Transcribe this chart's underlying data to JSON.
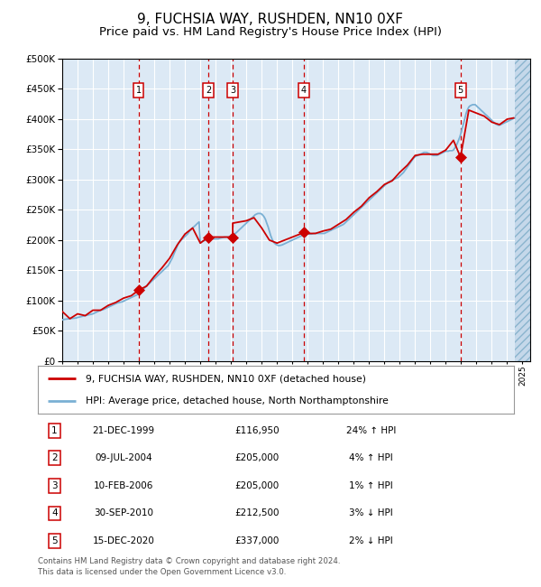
{
  "title": "9, FUCHSIA WAY, RUSHDEN, NN10 0XF",
  "subtitle": "Price paid vs. HM Land Registry's House Price Index (HPI)",
  "title_fontsize": 11,
  "subtitle_fontsize": 9.5,
  "background_color": "#dce9f5",
  "grid_color": "#ffffff",
  "sale_color": "#cc0000",
  "hpi_color": "#7ab0d4",
  "dashed_line_color": "#cc0000",
  "xlim_start": 1995.0,
  "xlim_end": 2025.5,
  "ylim_min": 0,
  "ylim_max": 500000,
  "ytick_step": 50000,
  "sales": [
    {
      "year": 1999.97,
      "price": 116950,
      "label": "1"
    },
    {
      "year": 2004.52,
      "price": 205000,
      "label": "2"
    },
    {
      "year": 2006.11,
      "price": 205000,
      "label": "3"
    },
    {
      "year": 2010.75,
      "price": 212500,
      "label": "4"
    },
    {
      "year": 2020.96,
      "price": 337000,
      "label": "5"
    }
  ],
  "legend_entries": [
    {
      "label": "9, FUCHSIA WAY, RUSHDEN, NN10 0XF (detached house)",
      "color": "#cc0000",
      "lw": 2
    },
    {
      "label": "HPI: Average price, detached house, North Northamptonshire",
      "color": "#7ab0d4",
      "lw": 2
    }
  ],
  "table_rows": [
    {
      "num": "1",
      "date": "21-DEC-1999",
      "price": "£116,950",
      "pct": "24% ↑ HPI"
    },
    {
      "num": "2",
      "date": "09-JUL-2004",
      "price": "£205,000",
      "pct": "4% ↑ HPI"
    },
    {
      "num": "3",
      "date": "10-FEB-2006",
      "price": "£205,000",
      "pct": "1% ↑ HPI"
    },
    {
      "num": "4",
      "date": "30-SEP-2010",
      "price": "£212,500",
      "pct": "3% ↓ HPI"
    },
    {
      "num": "5",
      "date": "15-DEC-2020",
      "price": "£337,000",
      "pct": "2% ↓ HPI"
    }
  ],
  "footer": "Contains HM Land Registry data © Crown copyright and database right 2024.\nThis data is licensed under the Open Government Licence v3.0.",
  "hpi_data": {
    "years": [
      1995.0,
      1995.08,
      1995.17,
      1995.25,
      1995.33,
      1995.42,
      1995.5,
      1995.58,
      1995.67,
      1995.75,
      1995.83,
      1995.92,
      1996.0,
      1996.08,
      1996.17,
      1996.25,
      1996.33,
      1996.42,
      1996.5,
      1996.58,
      1996.67,
      1996.75,
      1996.83,
      1996.92,
      1997.0,
      1997.08,
      1997.17,
      1997.25,
      1997.33,
      1997.42,
      1997.5,
      1997.58,
      1997.67,
      1997.75,
      1997.83,
      1997.92,
      1998.0,
      1998.08,
      1998.17,
      1998.25,
      1998.33,
      1998.42,
      1998.5,
      1998.58,
      1998.67,
      1998.75,
      1998.83,
      1998.92,
      1999.0,
      1999.08,
      1999.17,
      1999.25,
      1999.33,
      1999.42,
      1999.5,
      1999.58,
      1999.67,
      1999.75,
      1999.83,
      1999.92,
      2000.0,
      2000.08,
      2000.17,
      2000.25,
      2000.33,
      2000.42,
      2000.5,
      2000.58,
      2000.67,
      2000.75,
      2000.83,
      2000.92,
      2001.0,
      2001.08,
      2001.17,
      2001.25,
      2001.33,
      2001.42,
      2001.5,
      2001.58,
      2001.67,
      2001.75,
      2001.83,
      2001.92,
      2002.0,
      2002.08,
      2002.17,
      2002.25,
      2002.33,
      2002.42,
      2002.5,
      2002.58,
      2002.67,
      2002.75,
      2002.83,
      2002.92,
      2003.0,
      2003.08,
      2003.17,
      2003.25,
      2003.33,
      2003.42,
      2003.5,
      2003.58,
      2003.67,
      2003.75,
      2003.83,
      2003.92,
      2004.0,
      2004.08,
      2004.17,
      2004.25,
      2004.33,
      2004.42,
      2004.5,
      2004.58,
      2004.67,
      2004.75,
      2004.83,
      2004.92,
      2005.0,
      2005.08,
      2005.17,
      2005.25,
      2005.33,
      2005.42,
      2005.5,
      2005.58,
      2005.67,
      2005.75,
      2005.83,
      2005.92,
      2006.0,
      2006.08,
      2006.17,
      2006.25,
      2006.33,
      2006.42,
      2006.5,
      2006.58,
      2006.67,
      2006.75,
      2006.83,
      2006.92,
      2007.0,
      2007.08,
      2007.17,
      2007.25,
      2007.33,
      2007.42,
      2007.5,
      2007.58,
      2007.67,
      2007.75,
      2007.83,
      2007.92,
      2008.0,
      2008.08,
      2008.17,
      2008.25,
      2008.33,
      2008.42,
      2008.5,
      2008.58,
      2008.67,
      2008.75,
      2008.83,
      2008.92,
      2009.0,
      2009.08,
      2009.17,
      2009.25,
      2009.33,
      2009.42,
      2009.5,
      2009.58,
      2009.67,
      2009.75,
      2009.83,
      2009.92,
      2010.0,
      2010.08,
      2010.17,
      2010.25,
      2010.33,
      2010.42,
      2010.5,
      2010.58,
      2010.67,
      2010.75,
      2010.83,
      2010.92,
      2011.0,
      2011.08,
      2011.17,
      2011.25,
      2011.33,
      2011.42,
      2011.5,
      2011.58,
      2011.67,
      2011.75,
      2011.83,
      2011.92,
      2012.0,
      2012.08,
      2012.17,
      2012.25,
      2012.33,
      2012.42,
      2012.5,
      2012.58,
      2012.67,
      2012.75,
      2012.83,
      2012.92,
      2013.0,
      2013.08,
      2013.17,
      2013.25,
      2013.33,
      2013.42,
      2013.5,
      2013.58,
      2013.67,
      2013.75,
      2013.83,
      2013.92,
      2014.0,
      2014.08,
      2014.17,
      2014.25,
      2014.33,
      2014.42,
      2014.5,
      2014.58,
      2014.67,
      2014.75,
      2014.83,
      2014.92,
      2015.0,
      2015.08,
      2015.17,
      2015.25,
      2015.33,
      2015.42,
      2015.5,
      2015.58,
      2015.67,
      2015.75,
      2015.83,
      2015.92,
      2016.0,
      2016.08,
      2016.17,
      2016.25,
      2016.33,
      2016.42,
      2016.5,
      2016.58,
      2016.67,
      2016.75,
      2016.83,
      2016.92,
      2017.0,
      2017.08,
      2017.17,
      2017.25,
      2017.33,
      2017.42,
      2017.5,
      2017.58,
      2017.67,
      2017.75,
      2017.83,
      2017.92,
      2018.0,
      2018.08,
      2018.17,
      2018.25,
      2018.33,
      2018.42,
      2018.5,
      2018.58,
      2018.67,
      2018.75,
      2018.83,
      2018.92,
      2019.0,
      2019.08,
      2019.17,
      2019.25,
      2019.33,
      2019.42,
      2019.5,
      2019.58,
      2019.67,
      2019.75,
      2019.83,
      2019.92,
      2020.0,
      2020.08,
      2020.17,
      2020.25,
      2020.33,
      2020.42,
      2020.5,
      2020.58,
      2020.67,
      2020.75,
      2020.83,
      2020.92,
      2021.0,
      2021.08,
      2021.17,
      2021.25,
      2021.33,
      2021.42,
      2021.5,
      2021.58,
      2021.67,
      2021.75,
      2021.83,
      2021.92,
      2022.0,
      2022.08,
      2022.17,
      2022.25,
      2022.33,
      2022.42,
      2022.5,
      2022.58,
      2022.67,
      2022.75,
      2022.83,
      2022.92,
      2023.0,
      2023.08,
      2023.17,
      2023.25,
      2023.33,
      2023.42,
      2023.5,
      2023.58,
      2023.67,
      2023.75,
      2023.83,
      2023.92,
      2024.0,
      2024.08,
      2024.17,
      2024.25,
      2024.33,
      2024.42,
      2024.5
    ],
    "values": [
      68000,
      68500,
      69000,
      69200,
      69500,
      69800,
      70000,
      70300,
      70500,
      70800,
      71000,
      71200,
      72000,
      72500,
      73000,
      73500,
      74000,
      74500,
      75000,
      75500,
      76000,
      76500,
      77000,
      77500,
      78000,
      79000,
      80000,
      81000,
      82000,
      83000,
      84000,
      84500,
      85000,
      86000,
      87000,
      88000,
      89000,
      90000,
      91000,
      92000,
      93000,
      94000,
      95000,
      96000,
      96500,
      97000,
      97500,
      98000,
      99000,
      100000,
      101000,
      102000,
      103000,
      104000,
      105000,
      106000,
      107000,
      108000,
      109000,
      110000,
      112000,
      114000,
      116000,
      118000,
      120000,
      122000,
      124000,
      126000,
      128000,
      130000,
      132000,
      134000,
      136000,
      138000,
      140000,
      142000,
      144000,
      146000,
      148000,
      150000,
      152000,
      154000,
      156000,
      158000,
      162000,
      166000,
      170000,
      175000,
      180000,
      185000,
      190000,
      195000,
      198000,
      200000,
      202000,
      204000,
      206000,
      208000,
      210000,
      213000,
      216000,
      218000,
      220000,
      222000,
      224000,
      226000,
      228000,
      230000,
      195000,
      197000,
      198000,
      199000,
      200000,
      201000,
      201500,
      202000,
      202000,
      202000,
      202000,
      202000,
      202000,
      202000,
      202000,
      203000,
      203500,
      204000,
      204500,
      205000,
      205000,
      205000,
      205000,
      205000,
      206000,
      207000,
      208000,
      210000,
      212000,
      214000,
      216000,
      218000,
      220000,
      222000,
      224000,
      226000,
      228000,
      230000,
      232000,
      234000,
      236000,
      238000,
      240000,
      242000,
      243000,
      244000,
      244000,
      244000,
      243000,
      241000,
      238000,
      234000,
      228000,
      222000,
      215000,
      208000,
      202000,
      198000,
      195000,
      193000,
      192000,
      191000,
      191000,
      191500,
      192000,
      193000,
      194000,
      195000,
      196000,
      197000,
      198000,
      199000,
      200000,
      201000,
      202000,
      203000,
      204000,
      205000,
      206000,
      207000,
      207500,
      208000,
      208500,
      209000,
      210000,
      210000,
      210000,
      210000,
      210500,
      211000,
      211000,
      211000,
      211000,
      211000,
      211000,
      211000,
      211000,
      211000,
      212000,
      213000,
      214000,
      215000,
      216000,
      217000,
      218000,
      219000,
      220000,
      221000,
      222000,
      223000,
      224000,
      225000,
      226000,
      228000,
      230000,
      232000,
      234000,
      236000,
      238000,
      240000,
      242000,
      244000,
      246000,
      248000,
      250000,
      252000,
      254000,
      256000,
      258000,
      260000,
      262000,
      264000,
      266000,
      268000,
      270000,
      272000,
      274000,
      276000,
      278000,
      280000,
      282000,
      284000,
      286000,
      288000,
      290000,
      292000,
      294000,
      296000,
      297000,
      298000,
      299000,
      300000,
      301000,
      302000,
      303000,
      304000,
      306000,
      308000,
      310000,
      312000,
      315000,
      318000,
      321000,
      324000,
      327000,
      330000,
      333000,
      336000,
      338000,
      339000,
      340000,
      341000,
      342000,
      343000,
      344000,
      345000,
      345000,
      345000,
      344000,
      343000,
      342000,
      341000,
      340000,
      340000,
      340000,
      340000,
      341000,
      342000,
      343000,
      344000,
      345000,
      346000,
      347000,
      347000,
      347000,
      348000,
      348000,
      348000,
      349000,
      352000,
      356000,
      360000,
      365000,
      371000,
      378000,
      386000,
      394000,
      402000,
      410000,
      416000,
      420000,
      422000,
      423000,
      424000,
      424000,
      424000,
      422000,
      420000,
      418000,
      416000,
      414000,
      412000,
      410000,
      408000,
      406000,
      404000,
      402000,
      400000,
      398000,
      396000,
      394000,
      392000,
      391000,
      390000,
      390000,
      391000,
      392000,
      393000,
      394000,
      395000,
      396000,
      397000,
      398000,
      399000,
      400000,
      401000,
      402000
    ]
  },
  "sale_hpi_line": {
    "years": [
      1995.0,
      1995.5,
      1996.0,
      1996.5,
      1997.0,
      1997.5,
      1998.0,
      1998.5,
      1999.0,
      1999.5,
      1999.97,
      2000.5,
      2001.0,
      2001.5,
      2002.0,
      2002.5,
      2003.0,
      2003.5,
      2004.0,
      2004.52,
      2004.52,
      2006.11,
      2006.11,
      2007.0,
      2007.5,
      2008.0,
      2008.5,
      2009.0,
      2009.5,
      2010.0,
      2010.75,
      2010.75,
      2011.0,
      2011.5,
      2012.0,
      2012.5,
      2013.0,
      2013.5,
      2014.0,
      2014.5,
      2015.0,
      2015.5,
      2016.0,
      2016.5,
      2017.0,
      2017.5,
      2018.0,
      2018.5,
      2019.0,
      2019.5,
      2020.0,
      2020.5,
      2020.96,
      2020.96,
      2021.5,
      2022.0,
      2022.5,
      2023.0,
      2023.5,
      2024.0,
      2024.42
    ],
    "values": [
      82000,
      70000,
      78000,
      75000,
      84000,
      84000,
      92000,
      97000,
      104000,
      108000,
      116950,
      124000,
      140000,
      154000,
      170000,
      192000,
      210000,
      220000,
      195000,
      205000,
      205000,
      205000,
      228000,
      232000,
      237000,
      220000,
      200000,
      195000,
      200000,
      205000,
      212500,
      212500,
      211000,
      211000,
      215000,
      218000,
      226000,
      234000,
      246000,
      256000,
      270000,
      280000,
      292000,
      298000,
      312000,
      324000,
      340000,
      342000,
      342000,
      342000,
      349000,
      365000,
      337000,
      337000,
      415000,
      410000,
      405000,
      395000,
      391000,
      400000,
      402000
    ]
  }
}
